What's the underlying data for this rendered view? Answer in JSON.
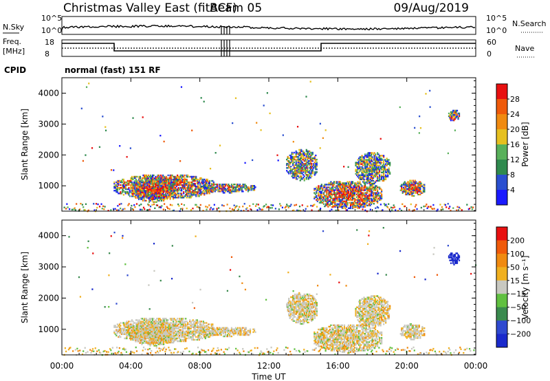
{
  "header": {
    "station": "Christmas Valley East (fitACF)",
    "beam": "Beam 05",
    "date": "09/Aug/2019"
  },
  "strip": {
    "nsky_label": "N.Sky",
    "nsky_ticks": [
      "10^5",
      "10^0"
    ],
    "nsearch_label": "N.Search",
    "nsearch_ticks": [
      "10^5",
      "10^0"
    ],
    "freq_label_line1": "Freq.",
    "freq_label_line2": "[MHz]",
    "freq_ticks": [
      "18",
      "8"
    ],
    "nave_label": "Nave",
    "nave_ticks": [
      "60",
      "0"
    ],
    "cpid_label": "CPID",
    "cpid_value": "normal (fast) 151 RF"
  },
  "chart_data": [
    {
      "type": "heatmap",
      "title": "",
      "xlabel": "",
      "ylabel": "Slant Range [km]",
      "x_ticks": [
        "00:00",
        "04:00",
        "08:00",
        "12:00",
        "16:00",
        "20:00",
        "00:00"
      ],
      "y_ticks": [
        "1000",
        "2000",
        "3000",
        "4000"
      ],
      "xlim_hours": [
        0,
        24
      ],
      "ylim_km": [
        180,
        4500
      ],
      "colorbar": {
        "label": "Power [dB]",
        "ticks": [
          "4",
          "8",
          "12",
          "16",
          "20",
          "24",
          "28"
        ],
        "colors": [
          "#1a1aff",
          "#2a4fd0",
          "#2f8a4e",
          "#58b05a",
          "#e6c020",
          "#f08a10",
          "#ef5a0a",
          "#e81010"
        ]
      }
    },
    {
      "type": "heatmap",
      "title": "",
      "xlabel": "Time UT",
      "ylabel": "Slant Range [km]",
      "x_ticks": [
        "00:00",
        "04:00",
        "08:00",
        "12:00",
        "16:00",
        "20:00",
        "00:00"
      ],
      "y_ticks": [
        "1000",
        "2000",
        "3000",
        "4000"
      ],
      "xlim_hours": [
        0,
        24
      ],
      "ylim_km": [
        180,
        4500
      ],
      "colorbar": {
        "label": "Velocity [m s⁻¹]",
        "ticks": [
          "200",
          "100",
          "50",
          "15",
          "−15",
          "−50",
          "−100",
          "−200"
        ],
        "colors": [
          "#1a2acc",
          "#2f4ad0",
          "#3a8a4e",
          "#60c040",
          "#c8c8c0",
          "#f0b020",
          "#f08a10",
          "#f05a0a",
          "#e81010"
        ]
      }
    }
  ]
}
